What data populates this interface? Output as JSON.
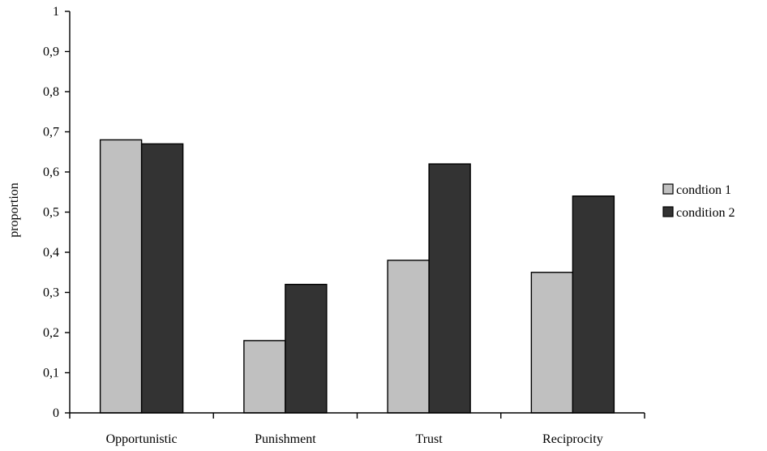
{
  "chart_data": {
    "type": "bar",
    "title": "",
    "xlabel": "",
    "ylabel": "proportion",
    "ylim": [
      0,
      1
    ],
    "yticks": [
      0,
      0.1,
      0.2,
      0.3,
      0.4,
      0.5,
      0.6,
      0.7,
      0.8,
      0.9,
      1
    ],
    "ytick_labels": [
      "0",
      "0,1",
      "0,2",
      "0,3",
      "0,4",
      "0,5",
      "0,6",
      "0,7",
      "0,8",
      "0,9",
      "1"
    ],
    "categories": [
      "Opportunistic",
      "Punishment",
      "Trust",
      "Reciprocity"
    ],
    "series": [
      {
        "name": "condtion 1",
        "values": [
          0.68,
          0.18,
          0.38,
          0.35
        ],
        "color": "#c0c0c0"
      },
      {
        "name": "condition 2",
        "values": [
          0.67,
          0.32,
          0.62,
          0.54
        ],
        "color": "#333333"
      }
    ],
    "grid": false,
    "legend_position": "right"
  }
}
